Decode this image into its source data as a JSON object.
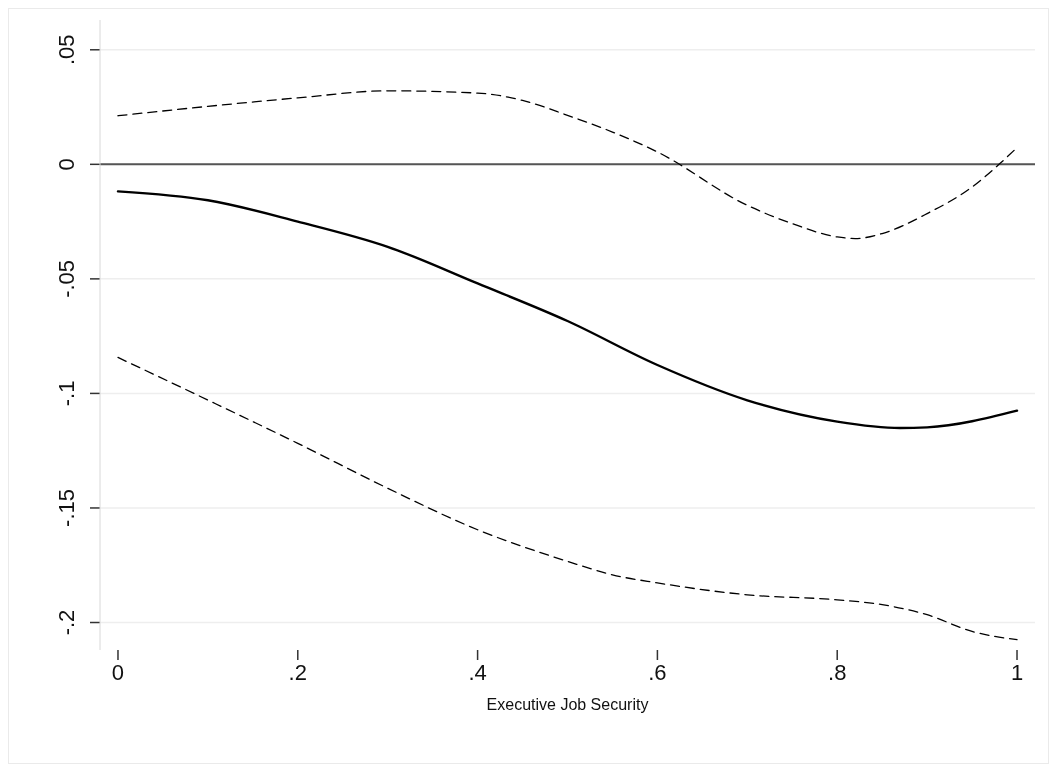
{
  "chart_data": {
    "type": "line",
    "xlabel": "Executive Job Security",
    "xlim": [
      -0.02,
      1.02
    ],
    "ylim": [
      -0.212,
      0.063
    ],
    "xticks": [
      0,
      {
        "value": 0.2,
        "label": ".2"
      },
      {
        "value": 0.4,
        "label": ".4"
      },
      {
        "value": 0.6,
        "label": ".6"
      },
      {
        "value": 0.8,
        "label": ".8"
      },
      1
    ],
    "yticks": [
      {
        "value": -0.2,
        "label": "-.2"
      },
      {
        "value": -0.15,
        "label": "-.15"
      },
      {
        "value": -0.1,
        "label": "-.1"
      },
      {
        "value": -0.05,
        "label": "-.05"
      },
      0,
      {
        "value": 0.05,
        "label": ".05"
      }
    ],
    "grid": "y",
    "ref_lines": [
      {
        "axis": "y",
        "value": 0,
        "color": "#555555"
      }
    ],
    "series": [
      {
        "color": "#000000",
        "line_style": "solid",
        "x": [
          0,
          0.1,
          0.2,
          0.3,
          0.4,
          0.5,
          0.6,
          0.7,
          0.8,
          0.87,
          0.9,
          1
        ],
        "values": [
          -0.0118,
          -0.0157,
          -0.025,
          -0.036,
          -0.052,
          -0.0684,
          -0.0876,
          -0.103,
          -0.1123,
          -0.1151,
          -0.1148,
          -0.1075
        ]
      },
      {
        "color": "#000000",
        "line_style": "dashed",
        "x": [
          0,
          0.1,
          0.2,
          0.3,
          0.4,
          0.45,
          0.5,
          0.55,
          0.6,
          0.7,
          0.75,
          0.8,
          0.82,
          0.85,
          0.9,
          0.95,
          0.98,
          1
        ],
        "values": [
          0.0212,
          0.0253,
          0.029,
          0.0321,
          0.0311,
          0.0279,
          0.0214,
          0.0141,
          0.0054,
          -0.0179,
          -0.0259,
          -0.0317,
          -0.0324,
          -0.0302,
          -0.0215,
          -0.0099,
          0,
          0.0073
        ]
      },
      {
        "color": "#000000",
        "line_style": "dashed",
        "x": [
          0,
          0.1,
          0.2,
          0.3,
          0.4,
          0.5,
          0.55,
          0.6,
          0.7,
          0.8,
          0.85,
          0.9,
          0.95,
          1
        ],
        "values": [
          -0.0843,
          -0.1029,
          -0.1218,
          -0.1414,
          -0.1595,
          -0.1733,
          -0.1792,
          -0.1827,
          -0.1879,
          -0.1901,
          -0.1922,
          -0.1966,
          -0.2039,
          -0.2075
        ]
      }
    ]
  }
}
